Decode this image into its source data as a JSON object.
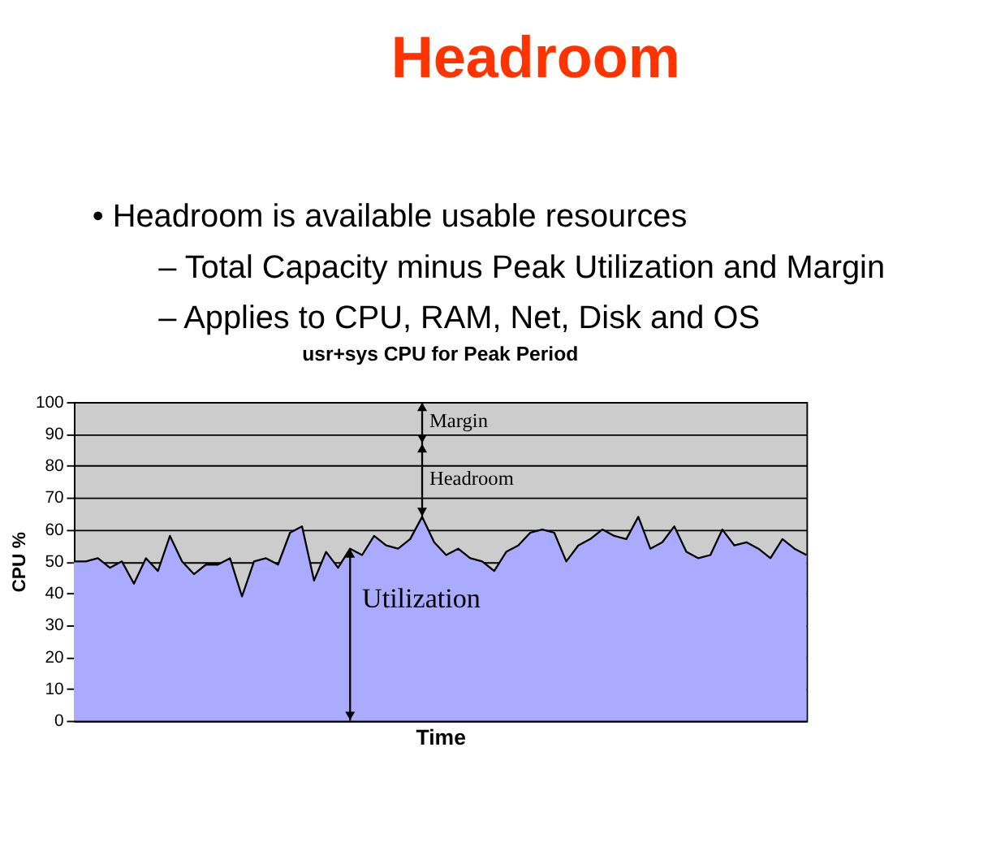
{
  "chart_data": {
    "type": "area",
    "title": "Headroom",
    "subtitle": "usr+sys CPU for Peak Period",
    "xlabel": "Time",
    "ylabel": "CPU %",
    "categories": [
      null,
      null,
      null,
      null,
      null,
      null,
      null,
      null,
      null,
      null,
      null,
      null,
      null,
      null,
      null,
      null,
      null,
      null,
      null,
      null,
      null,
      null,
      null,
      null,
      null,
      null,
      null,
      null,
      null,
      null,
      null,
      null,
      null,
      null,
      null,
      null,
      null,
      null,
      null,
      null,
      null,
      null,
      null,
      null,
      null,
      null,
      null,
      null,
      null,
      null,
      null,
      null,
      null,
      null,
      null,
      null,
      null,
      null,
      null,
      null,
      null,
      null
    ],
    "series": [
      {
        "color": "#aaaaff",
        "values": [
          50,
          50,
          51,
          48,
          50,
          43,
          51,
          47,
          58,
          50,
          46,
          49,
          49,
          51,
          39,
          50,
          51,
          49,
          59,
          61,
          44,
          53,
          48,
          54,
          52,
          58,
          55,
          54,
          57,
          64,
          56,
          52,
          54,
          51,
          50,
          47,
          53,
          55,
          59,
          60,
          59,
          50,
          55,
          57,
          60,
          58,
          57,
          64,
          54,
          56,
          61,
          53,
          51,
          52,
          60,
          55,
          56,
          54,
          51,
          57,
          54,
          52
        ]
      }
    ],
    "ylim": [
      0,
      100
    ],
    "yticks": [
      0,
      10,
      20,
      30,
      40,
      50,
      60,
      70,
      80,
      90,
      100
    ],
    "grid": "y",
    "tick_labels": "y",
    "annotations": [
      "•   Headroom is available usable resources",
      "– Total Capacity minus Peak Utilization and Margin",
      "– Applies to CPU, RAM, Net, Disk and OS",
      "Margin",
      "Headroom",
      "Utilization"
    ]
  }
}
